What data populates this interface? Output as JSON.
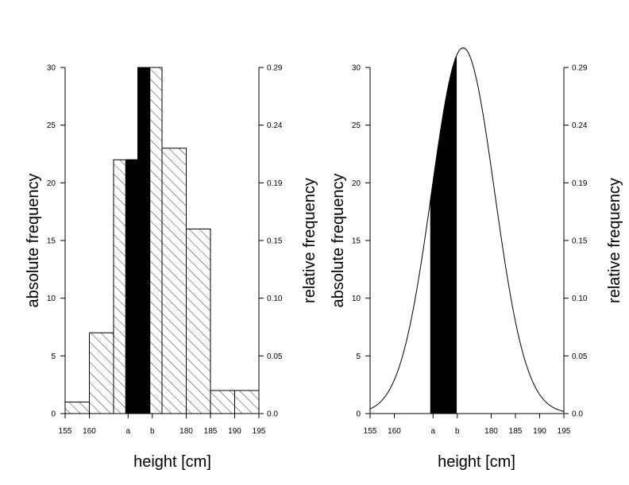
{
  "colors": {
    "background": "#ffffff",
    "ink": "#000000",
    "highlight": "#000000"
  },
  "chart_data": [
    {
      "type": "bar",
      "subtype": "histogram",
      "xlabel": "height [cm]",
      "ylabel": "absolute frequency",
      "ylabel_right": "relative frequency",
      "xlim": [
        155,
        195
      ],
      "ylim": [
        0,
        30
      ],
      "x_ticks": [
        {
          "value": 155,
          "label": "155"
        },
        {
          "value": 160,
          "label": "160"
        },
        {
          "value": 168,
          "label": "a"
        },
        {
          "value": 173,
          "label": "b"
        },
        {
          "value": 180,
          "label": "180"
        },
        {
          "value": 185,
          "label": "185"
        },
        {
          "value": 190,
          "label": "190"
        },
        {
          "value": 195,
          "label": "195"
        }
      ],
      "y_ticks": [
        0,
        5,
        10,
        15,
        20,
        25,
        30
      ],
      "y_ticks_right": [
        "0.0",
        "0.05",
        "0.10",
        "0.15",
        "0.19",
        "0.24",
        "0.29"
      ],
      "bins": [
        {
          "from": 155,
          "to": 160,
          "value": 1
        },
        {
          "from": 160,
          "to": 165,
          "value": 7
        },
        {
          "from": 165,
          "to": 170,
          "value": 22
        },
        {
          "from": 170,
          "to": 175,
          "value": 30
        },
        {
          "from": 175,
          "to": 180,
          "value": 23
        },
        {
          "from": 180,
          "to": 185,
          "value": 16
        },
        {
          "from": 185,
          "to": 190,
          "value": 2
        },
        {
          "from": 190,
          "to": 195,
          "value": 2
        }
      ],
      "highlight": [
        {
          "from": 167.5,
          "to": 170,
          "value": 22
        },
        {
          "from": 170,
          "to": 172.5,
          "value": 30
        }
      ],
      "fill_pattern": "diagonal hatch"
    },
    {
      "type": "area",
      "subtype": "normal density curve",
      "xlabel": "height [cm]",
      "ylabel": "absolute frequency",
      "ylabel_right": "relative frequency",
      "xlim": [
        155,
        195
      ],
      "ylim": [
        0,
        30
      ],
      "x_ticks": [
        {
          "value": 155,
          "label": "155"
        },
        {
          "value": 160,
          "label": "160"
        },
        {
          "value": 168,
          "label": "a"
        },
        {
          "value": 173,
          "label": "b"
        },
        {
          "value": 180,
          "label": "180"
        },
        {
          "value": 185,
          "label": "185"
        },
        {
          "value": 190,
          "label": "190"
        },
        {
          "value": 195,
          "label": "195"
        }
      ],
      "y_ticks": [
        0,
        5,
        10,
        15,
        20,
        25,
        30
      ],
      "y_ticks_right": [
        "0.0",
        "0.05",
        "0.10",
        "0.15",
        "0.19",
        "0.24",
        "0.29"
      ],
      "curve": {
        "mean": 174.2,
        "sd": 6.5,
        "peak": 31.7
      },
      "shaded_range": [
        167.5,
        172.8
      ]
    }
  ]
}
